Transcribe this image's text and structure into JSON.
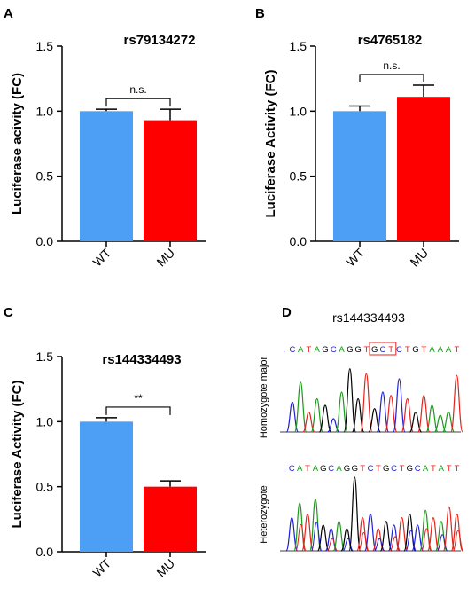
{
  "colors": {
    "wt": "#4d9ff5",
    "mu": "#ff0000",
    "axis": "#000000",
    "base_A": "#1a9a1a",
    "base_C": "#1f1fd8",
    "base_G": "#000000",
    "base_T": "#e4231c",
    "highlight": "#e4231c"
  },
  "chart_data": [
    {
      "panel": "A",
      "type": "bar",
      "title": "rs79134272",
      "ylabel": "Luciferase acivity (FC)",
      "ylim": [
        0,
        1.5
      ],
      "yticks": [
        "0.0",
        "0.5",
        "1.0",
        "1.5"
      ],
      "categories": [
        "WT",
        "MU"
      ],
      "values": [
        1.0,
        0.93
      ],
      "errors": [
        0.015,
        0.085
      ],
      "significance": "n.s."
    },
    {
      "panel": "B",
      "type": "bar",
      "title": "rs4765182",
      "ylabel": "Luciferase Activity (FC)",
      "ylim": [
        0,
        1.5
      ],
      "yticks": [
        "0.0",
        "0.5",
        "1.0",
        "1.5"
      ],
      "categories": [
        "WT",
        "MU"
      ],
      "values": [
        1.0,
        1.11
      ],
      "errors": [
        0.04,
        0.09
      ],
      "significance": "n.s."
    },
    {
      "panel": "C",
      "type": "bar",
      "title": "rs144334493",
      "ylabel": "Luciferase Activity (FC)",
      "ylim": [
        0,
        1.5
      ],
      "yticks": [
        "0.0",
        "0.5",
        "1.0",
        "1.5"
      ],
      "categories": [
        "WT",
        "MU"
      ],
      "values": [
        1.0,
        0.5
      ],
      "errors": [
        0.03,
        0.045
      ],
      "significance": "**"
    }
  ],
  "panel_d": {
    "letter": "D",
    "title": "rs144334493",
    "traces": [
      {
        "label": "Homozygote major",
        "sequence": ".CATAGCAGGTGCTCTGTAAAT",
        "highlight_start": 11,
        "highlight_end": 13
      },
      {
        "label": "Heterozygote",
        "sequence": ".CATAGCAGGTCTGCTGCATATT",
        "highlight_start": -1,
        "highlight_end": -1
      }
    ]
  }
}
